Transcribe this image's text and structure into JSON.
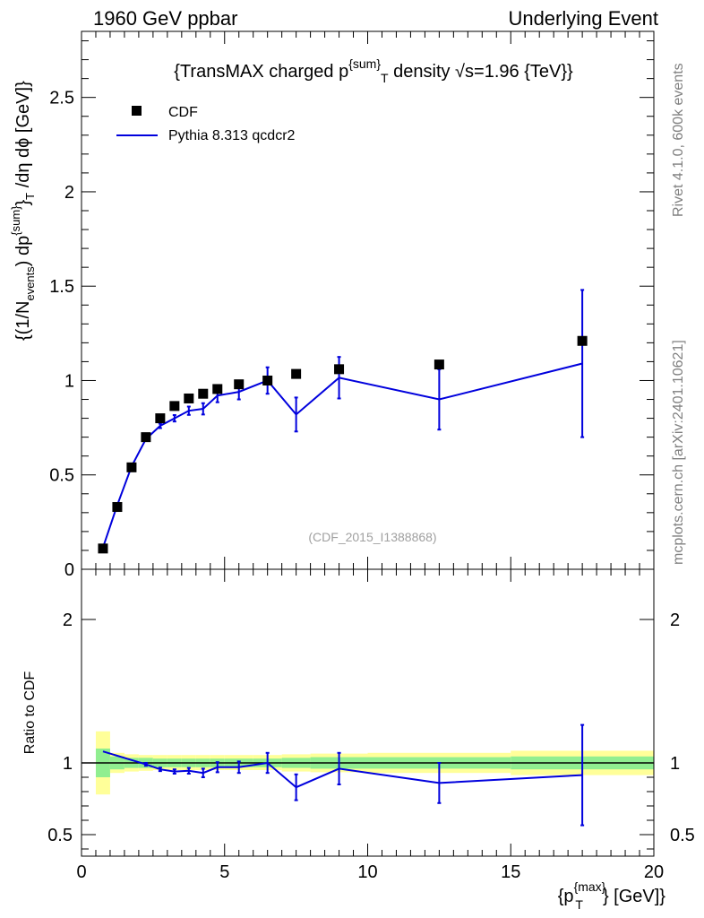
{
  "header": {
    "left": "1960 GeV ppbar",
    "right": "Underlying Event"
  },
  "side_labels": {
    "rivet": "Rivet 4.1.0,  600k events",
    "mcplots": "mcplots.cern.ch [arXiv:2401.10621]"
  },
  "chart_data": [
    {
      "type": "scatter",
      "panel": "main",
      "title": "{TransMAX charged p^{sum}_T density √s=1.96 {TeV}}",
      "title_parts": {
        "a": "{TransMAX charged p",
        "sup": "{sum}",
        "sub": "T",
        "b": " density √s=1.96 {TeV}}"
      },
      "ylabel": "{(1/N_events) dp^{sum}_T /dη  dϕ [GeV]}",
      "ylabel_parts": {
        "a": "{(1/N",
        "sub1": "events",
        "b": ") dp",
        "sup": "{sum}",
        "c": "}",
        "sub2": "T",
        "d": " /dη  dϕ [GeV]}"
      },
      "watermark": "(CDF_2015_I1388868)",
      "xlim": [
        0,
        20
      ],
      "ylim": [
        0,
        2.85
      ],
      "y_ticks": [
        0,
        0.5,
        1,
        1.5,
        2,
        2.5
      ],
      "y_tick_labels": [
        "0",
        "0.5",
        "1",
        "1.5",
        "2",
        "2.5"
      ],
      "legend": {
        "position": "top-left",
        "entries": [
          {
            "name": "CDF",
            "marker": "square",
            "color": "#000000"
          },
          {
            "name": "Pythia 8.313 qcdcr2",
            "marker": "line",
            "color": "#0000dd"
          }
        ]
      },
      "series": [
        {
          "name": "CDF",
          "x": [
            0.75,
            1.25,
            1.75,
            2.25,
            2.75,
            3.25,
            3.75,
            4.25,
            4.75,
            5.5,
            6.5,
            7.5,
            9.0,
            12.5,
            17.5
          ],
          "y": [
            0.11,
            0.33,
            0.54,
            0.7,
            0.8,
            0.865,
            0.905,
            0.93,
            0.955,
            0.98,
            1.0,
            1.035,
            1.06,
            1.085,
            1.21
          ]
        },
        {
          "name": "Pythia 8.313 qcdcr2",
          "x": [
            0.75,
            1.25,
            1.75,
            2.25,
            2.75,
            3.25,
            3.75,
            4.25,
            4.75,
            5.5,
            6.5,
            7.5,
            9.0,
            12.5,
            17.5
          ],
          "y": [
            0.115,
            0.34,
            0.545,
            0.69,
            0.76,
            0.8,
            0.84,
            0.85,
            0.92,
            0.94,
            1.0,
            0.82,
            1.015,
            0.9,
            1.09
          ],
          "yerr": [
            0.004,
            0.005,
            0.006,
            0.008,
            0.012,
            0.017,
            0.022,
            0.03,
            0.035,
            0.04,
            0.07,
            0.09,
            0.11,
            0.16,
            0.39
          ]
        }
      ]
    },
    {
      "type": "line",
      "panel": "ratio",
      "ylabel": "Ratio to CDF",
      "xlabel": "{p^{max}_T} [GeV]}",
      "xlabel_parts": {
        "a": "{p",
        "sup": "{max}",
        "sub": "T",
        "b": "} [GeV]}"
      },
      "xlim": [
        0,
        20
      ],
      "ylim": [
        0.35,
        2.35
      ],
      "x_ticks": [
        0,
        5,
        10,
        15,
        20
      ],
      "x_tick_labels": [
        "0",
        "5",
        "10",
        "15",
        "20"
      ],
      "y_ticks": [
        0.5,
        1,
        2
      ],
      "y_tick_labels": [
        "0.5",
        "1",
        "2"
      ],
      "bands": {
        "edges": [
          0.5,
          1.0,
          1.5,
          2.0,
          2.5,
          3.0,
          3.5,
          4.0,
          4.5,
          5.0,
          6.0,
          7.0,
          8.0,
          10.0,
          15.0,
          20.0
        ],
        "inner_lo": [
          0.9,
          0.955,
          0.965,
          0.965,
          0.97,
          0.97,
          0.97,
          0.97,
          0.97,
          0.97,
          0.97,
          0.965,
          0.96,
          0.96,
          0.955
        ],
        "inner_hi": [
          1.1,
          1.045,
          1.035,
          1.035,
          1.03,
          1.03,
          1.03,
          1.03,
          1.03,
          1.03,
          1.03,
          1.035,
          1.04,
          1.04,
          1.045
        ],
        "outer_lo": [
          0.78,
          0.93,
          0.94,
          0.945,
          0.95,
          0.95,
          0.95,
          0.95,
          0.95,
          0.95,
          0.95,
          0.94,
          0.935,
          0.93,
          0.915
        ],
        "outer_hi": [
          1.22,
          1.07,
          1.06,
          1.055,
          1.055,
          1.055,
          1.055,
          1.055,
          1.055,
          1.055,
          1.055,
          1.06,
          1.065,
          1.07,
          1.085
        ],
        "inner_color": "#90ee90",
        "outer_color": "#ffff99"
      },
      "series": [
        {
          "name": "Pythia 8.313 qcdcr2",
          "color": "#0000dd",
          "x": [
            0.75,
            1.25,
            1.75,
            2.25,
            2.75,
            3.25,
            3.75,
            4.25,
            4.75,
            5.5,
            6.5,
            7.5,
            9.0,
            12.5,
            17.5
          ],
          "y": [
            1.08,
            1.05,
            1.02,
            0.99,
            0.955,
            0.94,
            0.945,
            0.93,
            0.97,
            0.97,
            1.0,
            0.83,
            0.96,
            0.86,
            0.915
          ],
          "yerr": [
            0.004,
            0.006,
            0.008,
            0.01,
            0.012,
            0.015,
            0.02,
            0.03,
            0.035,
            0.04,
            0.07,
            0.09,
            0.11,
            0.14,
            0.35
          ]
        }
      ]
    }
  ]
}
